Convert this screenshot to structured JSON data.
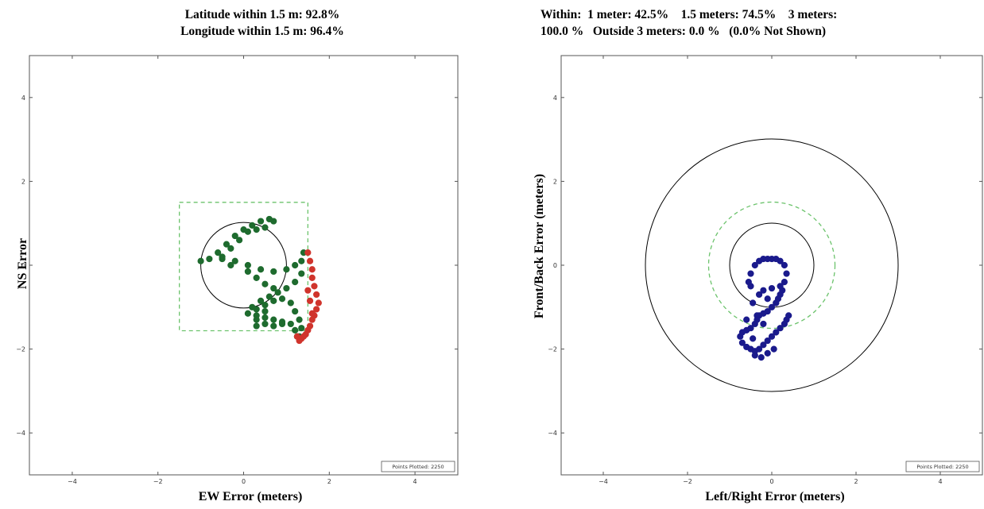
{
  "chart_data": [
    {
      "type": "scatter",
      "title": [
        "Latitude within 1.5 m: 92.8%",
        "Longitude within 1.5 m: 96.4%"
      ],
      "xlabel": "EW Error (meters)",
      "ylabel": "NS Error",
      "xlim": [
        -5,
        5
      ],
      "ylim": [
        -5,
        5
      ],
      "x_ticks": [
        -4,
        -2,
        0,
        2,
        4
      ],
      "y_ticks": [
        -4,
        -2,
        0,
        2,
        4
      ],
      "reference": {
        "circle_radius": 1,
        "box_half_size": 1.5
      },
      "legend": "Points Plotted: 2250",
      "legend_position": "bottom-right",
      "colors": {
        "inside": "#1e6b2e",
        "outside": "#d0342c",
        "box": "#6cc36c",
        "circle": "#000000"
      },
      "series": [
        {
          "color": "inside",
          "x": [
            -1.0,
            -0.8,
            -0.6,
            -0.4,
            -0.2,
            0.0,
            0.2,
            0.4,
            0.6,
            0.7,
            0.5,
            0.3,
            0.1,
            -0.1,
            -0.3,
            -0.5,
            -0.2,
            0.1,
            0.4,
            0.7,
            1.0,
            1.2,
            1.35,
            1.4,
            1.35,
            1.2,
            1.0,
            0.8,
            0.6,
            0.4,
            0.2,
            0.3,
            0.5,
            0.7,
            0.9,
            1.1,
            1.2,
            1.3,
            1.35,
            1.3,
            0.1,
            0.3,
            0.5,
            0.7,
            0.9,
            1.1,
            1.2,
            1.25,
            0.3,
            0.5,
            0.7,
            0.9,
            -0.5,
            -0.3,
            0.1,
            0.3,
            0.5,
            0.7,
            0.3,
            0.5
          ],
          "y": [
            0.1,
            0.15,
            0.3,
            0.5,
            0.7,
            0.85,
            0.95,
            1.05,
            1.1,
            1.05,
            0.9,
            0.85,
            0.8,
            0.6,
            0.4,
            0.15,
            0.1,
            0.0,
            -0.1,
            -0.15,
            -0.1,
            0.0,
            0.1,
            0.3,
            -0.2,
            -0.4,
            -0.55,
            -0.65,
            -0.75,
            -0.85,
            -1.0,
            -1.05,
            -0.95,
            -0.85,
            -0.8,
            -0.9,
            -1.1,
            -1.3,
            -1.5,
            -1.7,
            -1.15,
            -1.2,
            -1.25,
            -1.3,
            -1.35,
            -1.4,
            -1.55,
            -1.7,
            -1.45,
            -1.4,
            -1.45,
            -1.4,
            0.2,
            0.0,
            -0.15,
            -0.3,
            -0.45,
            -0.55,
            -1.3,
            -1.1
          ]
        },
        {
          "color": "outside",
          "x": [
            1.5,
            1.55,
            1.6,
            1.6,
            1.65,
            1.7,
            1.75,
            1.7,
            1.65,
            1.6,
            1.55,
            1.5,
            1.45,
            1.4,
            1.35,
            1.3,
            1.25,
            1.5,
            1.55,
            1.6
          ],
          "y": [
            0.3,
            0.1,
            -0.1,
            -0.3,
            -0.5,
            -0.7,
            -0.9,
            -1.05,
            -1.2,
            -1.3,
            -1.45,
            -1.55,
            -1.65,
            -1.7,
            -1.75,
            -1.8,
            -1.7,
            -0.6,
            -0.85,
            -1.15
          ]
        }
      ]
    },
    {
      "type": "scatter",
      "title": [
        "Within:  1 meter: 42.5%    1.5 meters: 74.5%    3 meters:",
        "100.0 %   Outside 3 meters: 0.0 %   (0.0% Not Shown)"
      ],
      "xlabel": "Left/Right  Error (meters)",
      "ylabel": "Front/Back  Error  (meters)",
      "xlim": [
        -5,
        5
      ],
      "ylim": [
        -5,
        5
      ],
      "x_ticks": [
        -4,
        -2,
        0,
        2,
        4
      ],
      "y_ticks": [
        -4,
        -2,
        0,
        2,
        4
      ],
      "reference": {
        "circle_radii": [
          1,
          3
        ],
        "dashed_circle_radius": 1.5
      },
      "legend": "Points Plotted: 2250",
      "legend_position": "bottom-right",
      "colors": {
        "points": "#1a1a8c",
        "dashed": "#6cc36c",
        "circle": "#000000"
      },
      "series": [
        {
          "color": "points",
          "x": [
            -0.5,
            -0.4,
            -0.3,
            -0.2,
            -0.1,
            0.0,
            0.1,
            0.2,
            0.3,
            0.35,
            0.3,
            0.25,
            0.2,
            0.15,
            0.1,
            0.0,
            -0.1,
            -0.2,
            -0.3,
            -0.35,
            -0.4,
            -0.5,
            -0.6,
            -0.7,
            -0.75,
            -0.7,
            -0.6,
            -0.5,
            -0.4,
            -0.3,
            -0.2,
            -0.1,
            0.0,
            0.1,
            0.2,
            0.3,
            0.35,
            0.4,
            -0.2,
            0.0,
            0.2,
            -0.5,
            -0.3,
            -0.1,
            0.1,
            -0.55,
            -0.45,
            -0.35,
            -0.2,
            -0.4,
            -0.25,
            -0.1,
            0.05,
            -0.6,
            -0.45
          ],
          "y": [
            -0.2,
            0.0,
            0.1,
            0.15,
            0.15,
            0.15,
            0.15,
            0.1,
            0.0,
            -0.2,
            -0.4,
            -0.6,
            -0.7,
            -0.8,
            -0.9,
            -1.0,
            -1.1,
            -1.15,
            -1.2,
            -1.3,
            -1.4,
            -1.5,
            -1.55,
            -1.6,
            -1.7,
            -1.85,
            -1.95,
            -2.0,
            -2.05,
            -2.0,
            -1.9,
            -1.8,
            -1.7,
            -1.6,
            -1.5,
            -1.4,
            -1.3,
            -1.2,
            -0.6,
            -0.55,
            -0.5,
            -0.5,
            -0.7,
            -0.8,
            -0.9,
            -0.4,
            -0.9,
            -1.2,
            -1.4,
            -2.15,
            -2.2,
            -2.1,
            -2.0,
            -1.3,
            -1.75
          ]
        }
      ]
    }
  ]
}
